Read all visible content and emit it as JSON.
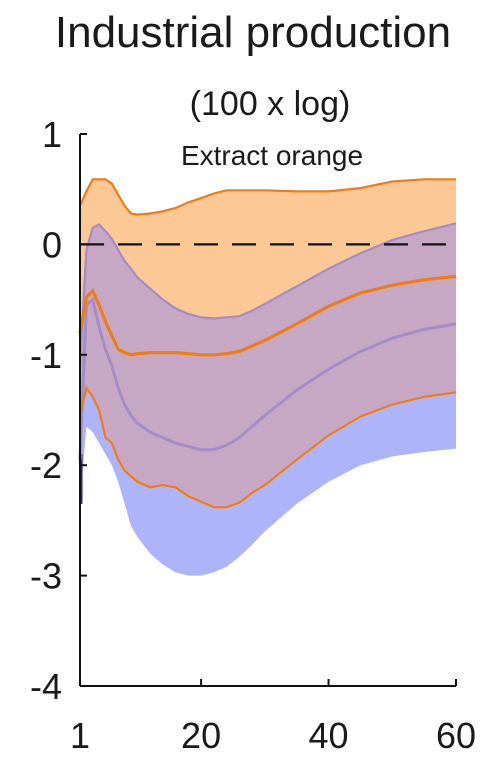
{
  "chart_data": {
    "type": "area",
    "title": "Industrial production",
    "subtitle": "(100 x log)",
    "xlabel": "",
    "ylabel": "",
    "xlim": [
      1,
      60
    ],
    "ylim": [
      -4,
      1
    ],
    "x_ticks": [
      1,
      20,
      40,
      60
    ],
    "x_tick_labels": [
      "1",
      "20",
      "40",
      "60"
    ],
    "y_ticks": [
      1,
      0,
      -1,
      -2,
      -3,
      -4
    ],
    "y_tick_labels": [
      "1",
      "0",
      "-1",
      "-2",
      "-3",
      "-4"
    ],
    "grid": false,
    "zero_line": true,
    "legend": {
      "label": "Extract orange",
      "color": "#f4a373",
      "placement": "top-center"
    },
    "colors": {
      "orange_line": "#f07d12",
      "orange_band": "#fbc896",
      "blue_band": "#aeb4fa",
      "overlap_band": "#c7a8c4",
      "purple_line": "#a48cc8",
      "dark_tail": "#23239a"
    },
    "x": [
      1,
      2,
      3,
      4,
      5,
      6,
      7,
      8,
      9,
      10,
      12,
      14,
      16,
      18,
      20,
      22,
      24,
      26,
      28,
      30,
      35,
      40,
      45,
      50,
      55,
      60
    ],
    "series": [
      {
        "name": "Extract orange",
        "role": "orange",
        "median": [
          -0.8,
          -0.48,
          -0.42,
          -0.55,
          -0.7,
          -0.83,
          -0.95,
          -0.98,
          -1.0,
          -0.99,
          -0.98,
          -0.98,
          -0.98,
          -0.99,
          -1.0,
          -1.0,
          -0.99,
          -0.97,
          -0.92,
          -0.87,
          -0.72,
          -0.56,
          -0.44,
          -0.37,
          -0.32,
          -0.29
        ],
        "lower": [
          -1.55,
          -1.3,
          -1.38,
          -1.5,
          -1.75,
          -1.8,
          -1.95,
          -2.05,
          -2.1,
          -2.15,
          -2.2,
          -2.18,
          -2.2,
          -2.28,
          -2.33,
          -2.38,
          -2.38,
          -2.34,
          -2.25,
          -2.18,
          -1.95,
          -1.73,
          -1.56,
          -1.45,
          -1.38,
          -1.34
        ],
        "upper": [
          0.35,
          0.48,
          0.59,
          0.59,
          0.59,
          0.55,
          0.45,
          0.35,
          0.28,
          0.27,
          0.28,
          0.3,
          0.33,
          0.38,
          0.42,
          0.46,
          0.49,
          0.49,
          0.49,
          0.49,
          0.48,
          0.48,
          0.51,
          0.57,
          0.59,
          0.59
        ]
      },
      {
        "role": "blue",
        "median": [
          -1.95,
          -0.55,
          -0.5,
          -0.75,
          -0.95,
          -1.1,
          -1.3,
          -1.45,
          -1.55,
          -1.62,
          -1.7,
          -1.75,
          -1.8,
          -1.83,
          -1.86,
          -1.86,
          -1.82,
          -1.75,
          -1.65,
          -1.55,
          -1.32,
          -1.13,
          -0.97,
          -0.85,
          -0.77,
          -0.72
        ],
        "lower": [
          -2.35,
          -1.65,
          -1.7,
          -1.8,
          -1.9,
          -2.0,
          -2.15,
          -2.35,
          -2.55,
          -2.65,
          -2.8,
          -2.9,
          -2.97,
          -3.0,
          -3.0,
          -2.97,
          -2.92,
          -2.83,
          -2.72,
          -2.6,
          -2.35,
          -2.15,
          -2.0,
          -1.92,
          -1.88,
          -1.85
        ],
        "upper": [
          -1.1,
          -0.05,
          0.15,
          0.18,
          0.12,
          0.05,
          -0.05,
          -0.15,
          -0.22,
          -0.3,
          -0.4,
          -0.5,
          -0.58,
          -0.63,
          -0.66,
          -0.67,
          -0.66,
          -0.65,
          -0.6,
          -0.54,
          -0.38,
          -0.22,
          -0.08,
          0.04,
          0.12,
          0.19
        ]
      }
    ]
  }
}
